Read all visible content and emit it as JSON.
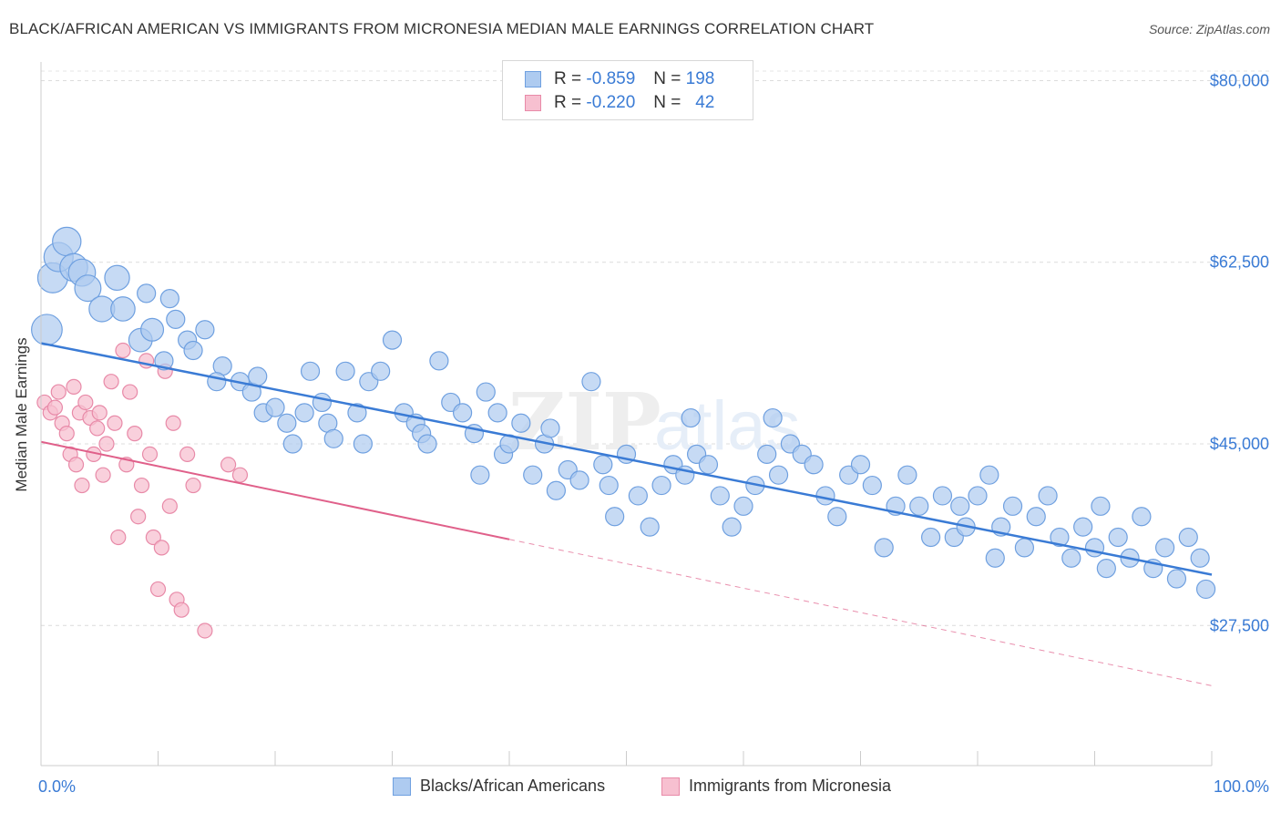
{
  "title": "BLACK/AFRICAN AMERICAN VS IMMIGRANTS FROM MICRONESIA MEDIAN MALE EARNINGS CORRELATION CHART",
  "source": "Source: ZipAtlas.com",
  "watermark": "ZIPatlas",
  "legend": {
    "rows": [
      {
        "r_label": "R =",
        "r_value": "-0.859",
        "n_label": "N =",
        "n_value": "198",
        "color": "#aecbf0",
        "border": "#6fa0e0"
      },
      {
        "r_label": "R =",
        "r_value": "-0.220",
        "n_label": "N =",
        "n_value": "42",
        "color": "#f7c0d0",
        "border": "#e88aa8"
      }
    ]
  },
  "bottom_legend": [
    {
      "label": "Blacks/African Americans",
      "color": "#aecbf0",
      "border": "#6fa0e0"
    },
    {
      "label": "Immigrants from Micronesia",
      "color": "#f7c0d0",
      "border": "#e88aa8"
    }
  ],
  "chart_data": {
    "type": "scatter",
    "ylabel": "Median Male Earnings",
    "xlabel": "",
    "x_tick_labels": [
      "0.0%",
      "100.0%"
    ],
    "y_tick_labels": [
      "$80,000",
      "$62,500",
      "$45,000",
      "$27,500"
    ],
    "y_ticks": [
      80000,
      62500,
      45000,
      27500
    ],
    "xlim": [
      0,
      100
    ],
    "ylim": [
      14000,
      82500
    ],
    "grid": true,
    "colors": {
      "blue": "#3a7bd5",
      "pink": "#e0608a",
      "blue_fill": "#aecbf0",
      "pink_fill": "#f7c0d0"
    },
    "series": [
      {
        "name": "Blacks/African Americans",
        "color": "#3a7bd5",
        "trend": {
          "x": [
            0,
            100
          ],
          "y": [
            54700,
            32400
          ],
          "dashed_to": null
        },
        "points": [
          [
            0.5,
            56
          ],
          [
            1,
            61
          ],
          [
            1.5,
            63
          ],
          [
            2.2,
            64.5
          ],
          [
            2.8,
            62
          ],
          [
            3.5,
            61.5
          ],
          [
            4,
            60
          ],
          [
            5.2,
            58
          ],
          [
            6.5,
            61
          ],
          [
            7,
            58
          ],
          [
            8.5,
            55
          ],
          [
            9.5,
            56
          ],
          [
            9,
            59.5
          ],
          [
            10.5,
            53
          ],
          [
            11,
            59
          ],
          [
            11.5,
            57
          ],
          [
            12.5,
            55
          ],
          [
            13,
            54
          ],
          [
            14,
            56
          ],
          [
            15.5,
            52.5
          ],
          [
            15,
            51
          ],
          [
            17,
            51
          ],
          [
            18,
            50
          ],
          [
            18.5,
            51.5
          ],
          [
            19,
            48
          ],
          [
            20,
            48.5
          ],
          [
            21,
            47
          ],
          [
            21.5,
            45
          ],
          [
            22.5,
            48
          ],
          [
            23,
            52
          ],
          [
            24,
            49
          ],
          [
            24.5,
            47
          ],
          [
            25,
            45.5
          ],
          [
            26,
            52
          ],
          [
            27,
            48
          ],
          [
            27.5,
            45
          ],
          [
            28,
            51
          ],
          [
            29,
            52
          ],
          [
            30,
            55
          ],
          [
            31,
            48
          ],
          [
            32,
            47
          ],
          [
            32.5,
            46
          ],
          [
            33,
            45
          ],
          [
            34,
            53
          ],
          [
            35,
            49
          ],
          [
            36,
            48
          ],
          [
            37,
            46
          ],
          [
            37.5,
            42
          ],
          [
            38,
            50
          ],
          [
            39,
            48
          ],
          [
            39.5,
            44
          ],
          [
            40,
            45
          ],
          [
            41,
            47
          ],
          [
            42,
            42
          ],
          [
            43,
            45
          ],
          [
            43.5,
            46.5
          ],
          [
            44,
            40.5
          ],
          [
            45,
            42.5
          ],
          [
            46,
            41.5
          ],
          [
            47,
            51
          ],
          [
            48,
            43
          ],
          [
            48.5,
            41
          ],
          [
            49,
            38
          ],
          [
            50,
            44
          ],
          [
            51,
            40
          ],
          [
            52,
            37
          ],
          [
            53,
            41
          ],
          [
            54,
            43
          ],
          [
            55,
            42
          ],
          [
            55.5,
            47.5
          ],
          [
            56,
            44
          ],
          [
            57,
            43
          ],
          [
            58,
            40
          ],
          [
            59,
            37
          ],
          [
            60,
            39
          ],
          [
            61,
            41
          ],
          [
            62,
            44
          ],
          [
            62.5,
            47.5
          ],
          [
            63,
            42
          ],
          [
            64,
            45
          ],
          [
            65,
            44
          ],
          [
            66,
            43
          ],
          [
            67,
            40
          ],
          [
            68,
            38
          ],
          [
            69,
            42
          ],
          [
            70,
            43
          ],
          [
            71,
            41
          ],
          [
            72,
            35
          ],
          [
            73,
            39
          ],
          [
            74,
            42
          ],
          [
            75,
            39
          ],
          [
            76,
            36
          ],
          [
            77,
            40
          ],
          [
            78,
            36
          ],
          [
            78.5,
            39
          ],
          [
            79,
            37
          ],
          [
            80,
            40
          ],
          [
            81,
            42
          ],
          [
            81.5,
            34
          ],
          [
            82,
            37
          ],
          [
            83,
            39
          ],
          [
            84,
            35
          ],
          [
            85,
            38
          ],
          [
            86,
            40
          ],
          [
            87,
            36
          ],
          [
            88,
            34
          ],
          [
            89,
            37
          ],
          [
            90,
            35
          ],
          [
            90.5,
            39
          ],
          [
            91,
            33
          ],
          [
            92,
            36
          ],
          [
            93,
            34
          ],
          [
            94,
            38
          ],
          [
            95,
            33
          ],
          [
            96,
            35
          ],
          [
            97,
            32
          ],
          [
            98,
            36
          ],
          [
            99,
            34
          ],
          [
            99.5,
            31
          ]
        ]
      },
      {
        "name": "Immigrants from Micronesia",
        "color": "#e0608a",
        "trend": {
          "x": [
            0,
            100
          ],
          "y": [
            45200,
            21700
          ],
          "solid_until": 40
        },
        "points": [
          [
            0.3,
            49
          ],
          [
            0.8,
            48
          ],
          [
            1.2,
            48.5
          ],
          [
            1.5,
            50
          ],
          [
            1.8,
            47
          ],
          [
            2.2,
            46
          ],
          [
            2.5,
            44
          ],
          [
            2.8,
            50.5
          ],
          [
            3,
            43
          ],
          [
            3.3,
            48
          ],
          [
            3.5,
            41
          ],
          [
            3.8,
            49
          ],
          [
            4.2,
            47.5
          ],
          [
            4.5,
            44
          ],
          [
            4.8,
            46.5
          ],
          [
            5,
            48
          ],
          [
            5.3,
            42
          ],
          [
            5.6,
            45
          ],
          [
            6,
            51
          ],
          [
            6.3,
            47
          ],
          [
            6.6,
            36
          ],
          [
            7,
            54
          ],
          [
            7.3,
            43
          ],
          [
            7.6,
            50
          ],
          [
            8,
            46
          ],
          [
            8.3,
            38
          ],
          [
            8.6,
            41
          ],
          [
            9,
            53
          ],
          [
            9.3,
            44
          ],
          [
            9.6,
            36
          ],
          [
            10,
            31
          ],
          [
            10.3,
            35
          ],
          [
            10.6,
            52
          ],
          [
            11,
            39
          ],
          [
            11.3,
            47
          ],
          [
            11.6,
            30
          ],
          [
            12,
            29
          ],
          [
            12.5,
            44
          ],
          [
            13,
            41
          ],
          [
            14,
            27
          ],
          [
            16,
            43
          ],
          [
            17,
            42
          ]
        ]
      }
    ]
  }
}
